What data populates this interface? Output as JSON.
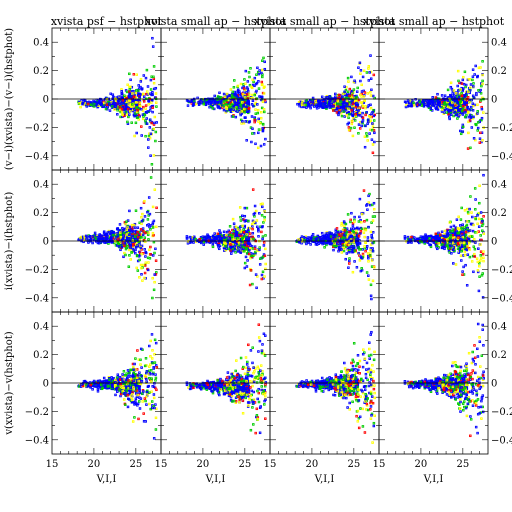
{
  "colors": {
    "background": "#ffffff",
    "axis": "#000000",
    "series": [
      "#0000ff",
      "#00cc00",
      "#ffff00",
      "#ff0000"
    ]
  },
  "chart_data": {
    "type": "scatter",
    "grid": false,
    "legend": "none",
    "layout": "3 rows x 4 columns of panels sharing axes",
    "column_titles": [
      "xvista psf − hstphot",
      "xvista small ap − hstphot",
      "xvista small ap − hstphot",
      "xvista small ap − hstphot"
    ],
    "row_ylabels": [
      "(v−i)(xvista)−(v−i)(hstphot)",
      "i(xvista)−i(hstphot)",
      "v(xvista)−v(hstphot)"
    ],
    "xlabel": "V,I,I",
    "xlim": [
      15,
      28
    ],
    "ylim_top_row": [
      -0.5,
      0.5
    ],
    "ylim_other_rows": [
      -0.5,
      0.5
    ],
    "x_ticks": [
      "15",
      "20",
      "25"
    ],
    "y_ticks_left": [
      "0.4",
      "0.2",
      "0",
      "−0.2",
      "−0.4"
    ],
    "y_ticks_right": [
      "0.4",
      "0.2",
      "0",
      "−0.2",
      "−0.4"
    ],
    "zero_line": true,
    "series_colors": [
      "blue",
      "green",
      "yellow",
      "red"
    ],
    "approx_data": {
      "x_range_of_points": [
        17.5,
        27.5
      ],
      "bulk_x_range": [
        18,
        24
      ],
      "bulk_y_range": [
        -0.08,
        0.05
      ],
      "faint_end_scatter_y": [
        -0.5,
        0.5
      ],
      "panels": [
        {
          "row": 1,
          "col": 1,
          "bulk_y_offset": -0.03
        },
        {
          "row": 1,
          "col": 2,
          "bulk_y_offset": -0.02
        },
        {
          "row": 1,
          "col": 3,
          "bulk_y_offset": -0.03
        },
        {
          "row": 1,
          "col": 4,
          "bulk_y_offset": -0.03
        },
        {
          "row": 2,
          "col": 1,
          "bulk_y_offset": 0.02
        },
        {
          "row": 2,
          "col": 2,
          "bulk_y_offset": 0.01
        },
        {
          "row": 2,
          "col": 3,
          "bulk_y_offset": 0.01
        },
        {
          "row": 2,
          "col": 4,
          "bulk_y_offset": 0.01
        },
        {
          "row": 3,
          "col": 1,
          "bulk_y_offset": -0.01
        },
        {
          "row": 3,
          "col": 2,
          "bulk_y_offset": -0.02
        },
        {
          "row": 3,
          "col": 3,
          "bulk_y_offset": -0.01
        },
        {
          "row": 3,
          "col": 4,
          "bulk_y_offset": -0.01
        }
      ]
    }
  }
}
